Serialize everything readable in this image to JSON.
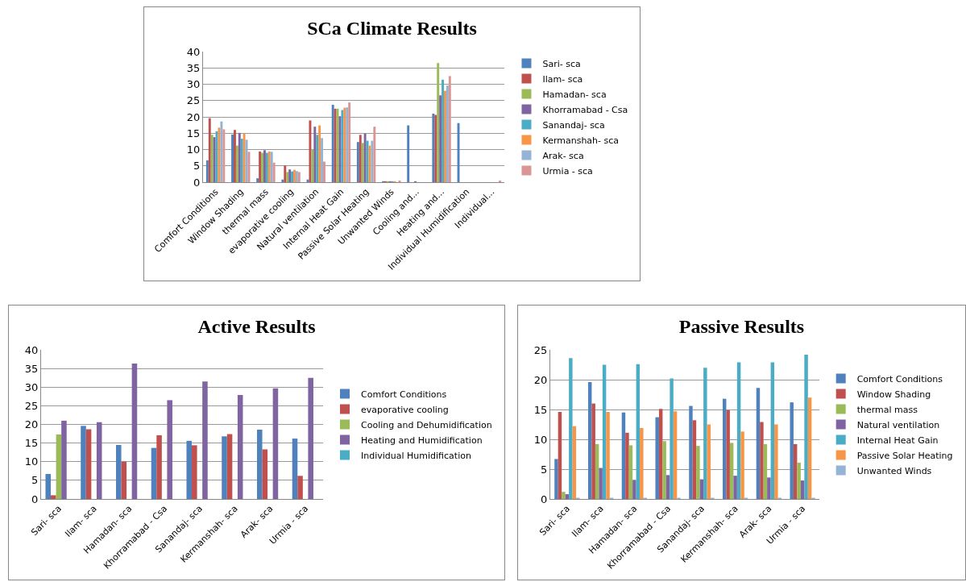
{
  "chart_data": [
    {
      "type": "bar",
      "title": "SCa Climate Results",
      "categories": [
        "Comfort Conditions",
        "Window Shading",
        "thermal mass",
        "evaporative cooling",
        "Natural ventilation",
        "Internal Heat Gain",
        "Passive Solar Heating",
        "Unwanted Winds",
        "Cooling and...",
        "Heating and...",
        "Individual Humidification",
        "Individual..."
      ],
      "series": [
        {
          "name": "Sari- sca",
          "color": "#4f81bd",
          "values": [
            6.7,
            14.6,
            1.2,
            0.8,
            0.8,
            23.7,
            12.3,
            0.3,
            17.4,
            21.0,
            18.1,
            0
          ]
        },
        {
          "name": "Ilam- sca",
          "color": "#c0504d",
          "values": [
            19.6,
            16.0,
            9.4,
            5.1,
            18.9,
            22.5,
            14.5,
            0.3,
            0,
            20.6,
            0,
            0
          ]
        },
        {
          "name": "Hamadan- sca",
          "color": "#9bbb59",
          "values": [
            14.5,
            11.2,
            9.0,
            3.1,
            10.1,
            22.5,
            12.0,
            0.3,
            0,
            36.5,
            0,
            0
          ]
        },
        {
          "name": "Khorramabad - Csa",
          "color": "#8064a2",
          "values": [
            13.8,
            15.1,
            9.8,
            3.9,
            17.0,
            20.2,
            14.9,
            0.3,
            0.3,
            26.6,
            0,
            0
          ]
        },
        {
          "name": "Sanandaj- sca",
          "color": "#4bacc6",
          "values": [
            15.6,
            13.3,
            9.0,
            3.3,
            14.5,
            22.1,
            12.7,
            0.3,
            0,
            31.4,
            0,
            0
          ]
        },
        {
          "name": "Kermanshah- sca",
          "color": "#f79646",
          "values": [
            16.7,
            14.9,
            9.4,
            3.8,
            17.4,
            22.8,
            11.2,
            0.3,
            0,
            28.0,
            0,
            0
          ]
        },
        {
          "name": "Arak- sca",
          "color": "#95b3d7",
          "values": [
            18.6,
            13.0,
            9.3,
            3.4,
            13.5,
            22.9,
            12.7,
            0,
            0,
            29.6,
            0,
            0
          ]
        },
        {
          "name": "Urmia - sca",
          "color": "#d99694",
          "values": [
            16.2,
            9.3,
            6.0,
            3.1,
            6.3,
            24.4,
            17.0,
            0.5,
            0,
            32.5,
            0,
            0.5
          ]
        }
      ],
      "ylim": [
        0,
        40
      ],
      "yticks": [
        0,
        5,
        10,
        15,
        20,
        25,
        30,
        35,
        40
      ],
      "grid": "y",
      "legend": "right"
    },
    {
      "type": "bar",
      "title": "Active Results",
      "categories": [
        "Sari- sca",
        "Ilam- sca",
        "Hamadan- sca",
        "Khorramabad - Csa",
        "Sanandaj- sca",
        "Kermanshah- sca",
        "Arak- sca",
        "Urmia - sca"
      ],
      "series": [
        {
          "name": "Comfort Conditions",
          "color": "#4f81bd",
          "values": [
            6.7,
            19.6,
            14.5,
            13.7,
            15.6,
            16.8,
            18.6,
            16.2
          ]
        },
        {
          "name": "evaporative cooling",
          "color": "#c0504d",
          "values": [
            1.0,
            18.7,
            10.0,
            17.1,
            14.4,
            17.4,
            13.3,
            6.2
          ]
        },
        {
          "name": "Cooling and Dehumidification",
          "color": "#9bbb59",
          "values": [
            17.3,
            0,
            0,
            0,
            0,
            0,
            0,
            0
          ]
        },
        {
          "name": "Heating and Humidification",
          "color": "#8064a2",
          "values": [
            21.0,
            20.6,
            36.3,
            26.5,
            31.5,
            27.9,
            29.7,
            32.5
          ]
        },
        {
          "name": "Individual Humidification",
          "color": "#4bacc6",
          "values": [
            0,
            0,
            0,
            0,
            0,
            0,
            0,
            0
          ]
        }
      ],
      "ylim": [
        0,
        40
      ],
      "yticks": [
        0,
        5,
        10,
        15,
        20,
        25,
        30,
        35,
        40
      ],
      "grid": "y",
      "legend": "right"
    },
    {
      "type": "bar",
      "title": "Passive Results",
      "categories": [
        "Sari- sca",
        "Ilam- sca",
        "Hamadan- sca",
        "Khorramabad - Csa",
        "Sanandaj- sca",
        "Kermanshah- sca",
        "Arak- sca",
        "Urmia - sca"
      ],
      "series": [
        {
          "name": "Comfort Conditions",
          "color": "#4f81bd",
          "values": [
            6.7,
            19.6,
            14.5,
            13.7,
            15.6,
            16.8,
            18.6,
            16.2
          ]
        },
        {
          "name": "Window Shading",
          "color": "#c0504d",
          "values": [
            14.6,
            16.0,
            11.1,
            15.1,
            13.2,
            14.9,
            12.9,
            9.2
          ]
        },
        {
          "name": "thermal mass",
          "color": "#9bbb59",
          "values": [
            1.2,
            9.2,
            9.0,
            9.7,
            8.9,
            9.4,
            9.2,
            6.1
          ]
        },
        {
          "name": "Natural ventilation",
          "color": "#8064a2",
          "values": [
            0.8,
            5.2,
            3.2,
            4.0,
            3.3,
            3.9,
            3.6,
            3.1
          ]
        },
        {
          "name": "Internal Heat Gain",
          "color": "#4bacc6",
          "values": [
            23.6,
            22.5,
            22.6,
            20.2,
            22.0,
            22.9,
            22.9,
            24.2
          ]
        },
        {
          "name": "Passive Solar Heating",
          "color": "#f79646",
          "values": [
            12.2,
            14.6,
            11.9,
            14.7,
            12.5,
            11.3,
            12.5,
            17.0
          ]
        },
        {
          "name": "Unwanted Winds",
          "color": "#95b3d7",
          "values": [
            0.2,
            0.2,
            0.2,
            0.2,
            0.2,
            0.2,
            0.2,
            0.2
          ]
        }
      ],
      "ylim": [
        0,
        25
      ],
      "yticks": [
        0,
        5,
        10,
        15,
        20,
        25
      ],
      "grid": "y",
      "legend": "right"
    }
  ]
}
